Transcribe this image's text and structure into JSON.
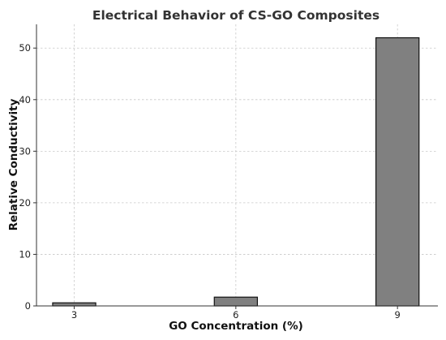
{
  "chart_data": {
    "type": "bar",
    "title": "Electrical Behavior of CS-GO Composites",
    "xlabel": "GO Concentration (%)",
    "ylabel": "Relative Conductivity",
    "categories": [
      "3",
      "6",
      "9"
    ],
    "x_values": [
      3,
      6,
      9
    ],
    "values": [
      0.6,
      1.7,
      52
    ],
    "xlim": [
      2.3,
      9.75
    ],
    "ylim": [
      0,
      54.6
    ],
    "yticks": [
      0,
      10,
      20,
      30,
      40,
      50
    ],
    "grid": true,
    "bar_color": "#808080",
    "edge_color": "#111111"
  }
}
